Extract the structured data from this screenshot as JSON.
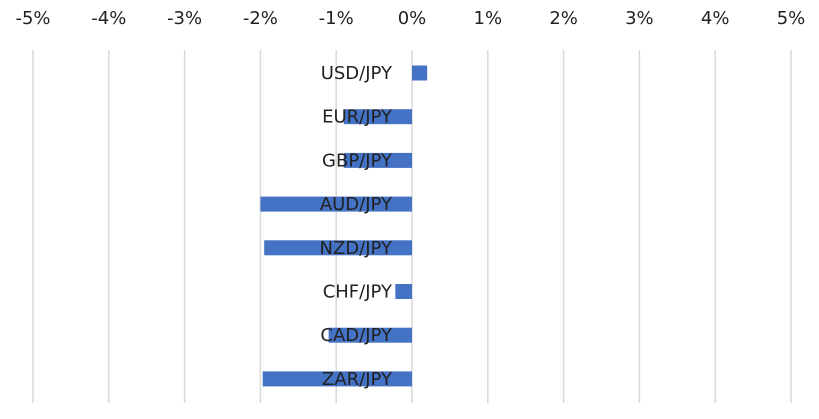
{
  "chart_data": {
    "type": "bar",
    "orientation": "horizontal",
    "categories": [
      "USD/JPY",
      "EUR/JPY",
      "GBP/JPY",
      "AUD/JPY",
      "NZD/JPY",
      "CHF/JPY",
      "CAD/JPY",
      "ZAR/JPY"
    ],
    "values": [
      0.2,
      -0.9,
      -0.9,
      -2.0,
      -1.95,
      -0.22,
      -1.1,
      -1.97
    ],
    "xlim": [
      -5,
      5
    ],
    "x_ticks": [
      -5,
      -4,
      -3,
      -2,
      -1,
      0,
      1,
      2,
      3,
      4,
      5
    ],
    "x_tick_labels": [
      "-5%",
      "-4%",
      "-3%",
      "-2%",
      "-1%",
      "0%",
      "1%",
      "2%",
      "3%",
      "4%",
      "5%"
    ],
    "x_axis_position": "top",
    "grid": "vertical",
    "bar_color": "#4472C4",
    "grid_color": "#d9d9d9",
    "title": "",
    "xlabel": "",
    "ylabel": "",
    "legend": "none"
  }
}
